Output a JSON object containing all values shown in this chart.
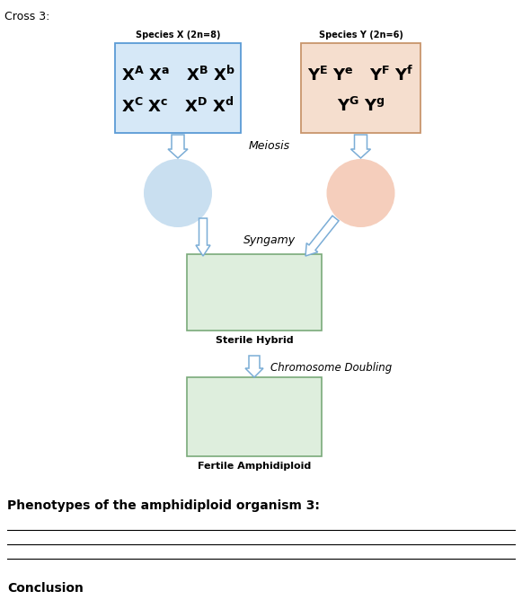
{
  "title": "Cross 3:",
  "species_x_label": "Species X (2n=8)",
  "species_y_label": "Species Y (2n=6)",
  "meiosis_label": "Meiosis",
  "syngamy_label": "Syngamy",
  "sterile_label": "Sterile Hybrid",
  "chr_doubling_label": "Chromosome Doubling",
  "fertile_label": "Fertile Amphidiploid",
  "phenotypes_label": "Phenotypes of the amphidiploid organism 3:",
  "conclusion_label": "Conclusion",
  "box_x_fill": "#d6e8f7",
  "box_x_edge": "#5b9bd5",
  "box_y_fill": "#f5dece",
  "box_y_edge": "#c8956c",
  "circle_x_color": "#c9dff0",
  "circle_y_color": "#f5cebc",
  "hybrid_box_fill": "#deeedd",
  "hybrid_box_edge": "#7aaa7a",
  "fertile_box_fill": "#deeedd",
  "fertile_box_edge": "#7aaa7a",
  "arrow_fill": "#ffffff",
  "arrow_edge": "#7badd6",
  "text_color": "#000000",
  "bg_color": "#ffffff",
  "line_color": "#000000"
}
